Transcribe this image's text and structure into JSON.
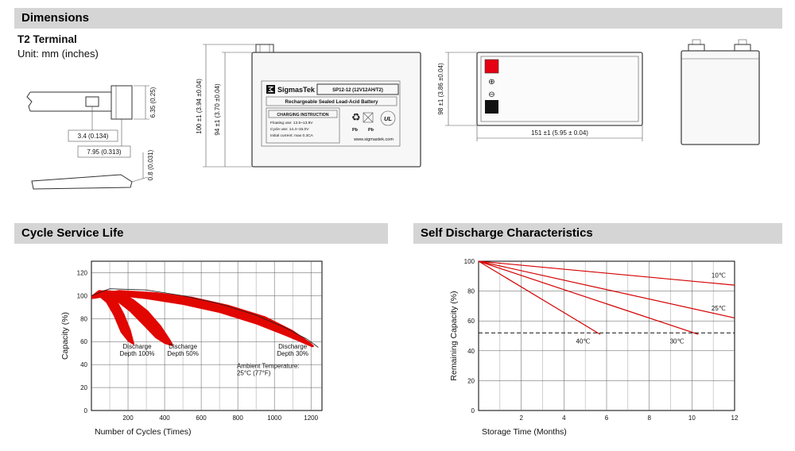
{
  "colors": {
    "accent_red": "#d40000",
    "band_red": "#e10600",
    "header_gray": "#d5d5d5"
  },
  "sections": {
    "dimensions_title": "Dimensions",
    "cycle_life_title": "Cycle Service Life",
    "self_discharge_title": "Self Discharge Characteristics"
  },
  "dimensions": {
    "terminal_type": "T2 Terminal",
    "unit_note": "Unit: mm (inches)",
    "terminal_detail": {
      "height": "6.35 (0.25)",
      "hole_width": "3.4 (0.134)",
      "tab_width": "7.95 (0.313)",
      "thickness": "0.8 (0.031)"
    },
    "front_view": {
      "overall_height": "100 ±1 (3.94 ±0.04)",
      "case_height": "94 ±1 (3.70 ±0.04)"
    },
    "top_view": {
      "width": "98 ±1 (3.86 ±0.04)",
      "length": "151 ±1 (5.95 ± 0.04)",
      "positive_symbol": "⊕",
      "negative_symbol": "⊖"
    },
    "label": {
      "brand": "SigmasTek",
      "model": "SP12-12 (12V12AH/T2)",
      "battery_type": "Rechargeable Sealed Lead-Acid Battery",
      "charging_title": "CHARGING INSTRUCTION",
      "charging_line1": "Floating use: 13.5~13.8V",
      "charging_line2": "Cycle use: 14.4~15.0V",
      "charging_line3": "Initial current: max 0.3CA",
      "recycle_icon": "♻",
      "pb1": "Pb",
      "pb2": "Pb",
      "ul": "UL",
      "website": "www.sigmastek.com"
    }
  },
  "chart_data": [
    {
      "id": "cycle_life",
      "type": "area",
      "title": "Cycle Service Life",
      "xlabel": "Number of Cycles (Times)",
      "ylabel": "Capacity (%)",
      "xlim": [
        0,
        1260
      ],
      "ylim": [
        0,
        130
      ],
      "xticks": [
        200,
        400,
        600,
        800,
        1000,
        1200
      ],
      "xgrid_minor": [
        100,
        300,
        500,
        700,
        900,
        1100
      ],
      "yticks": [
        0,
        20,
        40,
        60,
        80,
        100,
        120
      ],
      "grid": true,
      "bands": [
        {
          "name": "Discharge Depth 100%",
          "color": "#e10600",
          "upper": [
            [
              0,
              100
            ],
            [
              40,
              105
            ],
            [
              90,
              104
            ],
            [
              140,
              96
            ],
            [
              180,
              84
            ],
            [
              215,
              70
            ],
            [
              235,
              58
            ]
          ],
          "lower": [
            [
              0,
              97
            ],
            [
              35,
              100
            ],
            [
              80,
              94
            ],
            [
              120,
              83
            ],
            [
              160,
              68
            ],
            [
              200,
              60
            ],
            [
              232,
              57
            ]
          ]
        },
        {
          "name": "Discharge Depth 50%",
          "color": "#e10600",
          "upper": [
            [
              0,
              100
            ],
            [
              70,
              105
            ],
            [
              150,
              104
            ],
            [
              230,
              97
            ],
            [
              310,
              87
            ],
            [
              380,
              74
            ],
            [
              430,
              62
            ],
            [
              448,
              57
            ]
          ],
          "lower": [
            [
              0,
              97
            ],
            [
              60,
              101
            ],
            [
              130,
              96
            ],
            [
              210,
              86
            ],
            [
              290,
              73
            ],
            [
              350,
              63
            ],
            [
              400,
              58
            ],
            [
              442,
              56
            ]
          ]
        },
        {
          "name": "Discharge Depth 30%",
          "color": "#e10600",
          "upper": [
            [
              0,
              100
            ],
            [
              150,
              105
            ],
            [
              350,
              103
            ],
            [
              550,
              99
            ],
            [
              750,
              92
            ],
            [
              950,
              82
            ],
            [
              1100,
              70
            ],
            [
              1200,
              59
            ],
            [
              1218,
              56
            ]
          ],
          "lower": [
            [
              0,
              97
            ],
            [
              130,
              100
            ],
            [
              300,
              97
            ],
            [
              500,
              92
            ],
            [
              700,
              85
            ],
            [
              900,
              75
            ],
            [
              1060,
              65
            ],
            [
              1150,
              59
            ],
            [
              1208,
              55
            ]
          ]
        }
      ],
      "lines": [
        {
          "name": "capacity-envelope",
          "color": "#222222",
          "width": 0.8,
          "points": [
            [
              0,
              100
            ],
            [
              100,
              106
            ],
            [
              300,
              105
            ],
            [
              500,
              100
            ],
            [
              700,
              93
            ],
            [
              900,
              83
            ],
            [
              1060,
              72
            ],
            [
              1180,
              62
            ],
            [
              1240,
              55
            ]
          ]
        }
      ],
      "annotations": [
        {
          "text": "Discharge\nDepth 100%",
          "x": 250,
          "y": 54,
          "anchor": "middle"
        },
        {
          "text": "Discharge\nDepth 50%",
          "x": 500,
          "y": 54,
          "anchor": "middle"
        },
        {
          "text": "Discharge\nDepth 30%",
          "x": 1100,
          "y": 54,
          "anchor": "middle"
        },
        {
          "text": "Ambient Temperature:\n25°C (77°F)",
          "x": 795,
          "y": 37,
          "anchor": "start"
        }
      ]
    },
    {
      "id": "self_discharge",
      "type": "line",
      "title": "Self Discharge Characteristics",
      "xlabel": "Storage Time (Months)",
      "ylabel": "Remaining Capacity (%)",
      "xlim": [
        0,
        12
      ],
      "ylim": [
        0,
        100
      ],
      "xticks": [
        2,
        4,
        6,
        8,
        10,
        12
      ],
      "xgrid_minor": [
        1,
        3,
        5,
        7,
        9,
        11
      ],
      "yticks": [
        0,
        20,
        40,
        60,
        80,
        100
      ],
      "grid": true,
      "lines": [
        {
          "name": "10°C",
          "color": "#d40000",
          "points": [
            [
              0,
              100
            ],
            [
              12,
              84
            ]
          ]
        },
        {
          "name": "25°C",
          "color": "#d40000",
          "points": [
            [
              0,
              100
            ],
            [
              12,
              62
            ]
          ]
        },
        {
          "name": "30°C",
          "color": "#d40000",
          "points": [
            [
              0,
              100
            ],
            [
              10.3,
              51
            ]
          ]
        },
        {
          "name": "40°C",
          "color": "#d40000",
          "points": [
            [
              0,
              100
            ],
            [
              5.7,
              51
            ]
          ]
        },
        {
          "name": "50-percent-reference",
          "color": "#111111",
          "dash": "5,3",
          "width": 1,
          "points": [
            [
              0,
              52
            ],
            [
              12,
              52
            ]
          ]
        }
      ],
      "annotations": [
        {
          "text": "10℃",
          "x": 11.25,
          "y": 89,
          "anchor": "middle"
        },
        {
          "text": "25℃",
          "x": 11.25,
          "y": 67,
          "anchor": "middle"
        },
        {
          "text": "30℃",
          "x": 9.3,
          "y": 45,
          "anchor": "middle"
        },
        {
          "text": "40℃",
          "x": 4.9,
          "y": 45,
          "anchor": "middle"
        }
      ]
    }
  ]
}
